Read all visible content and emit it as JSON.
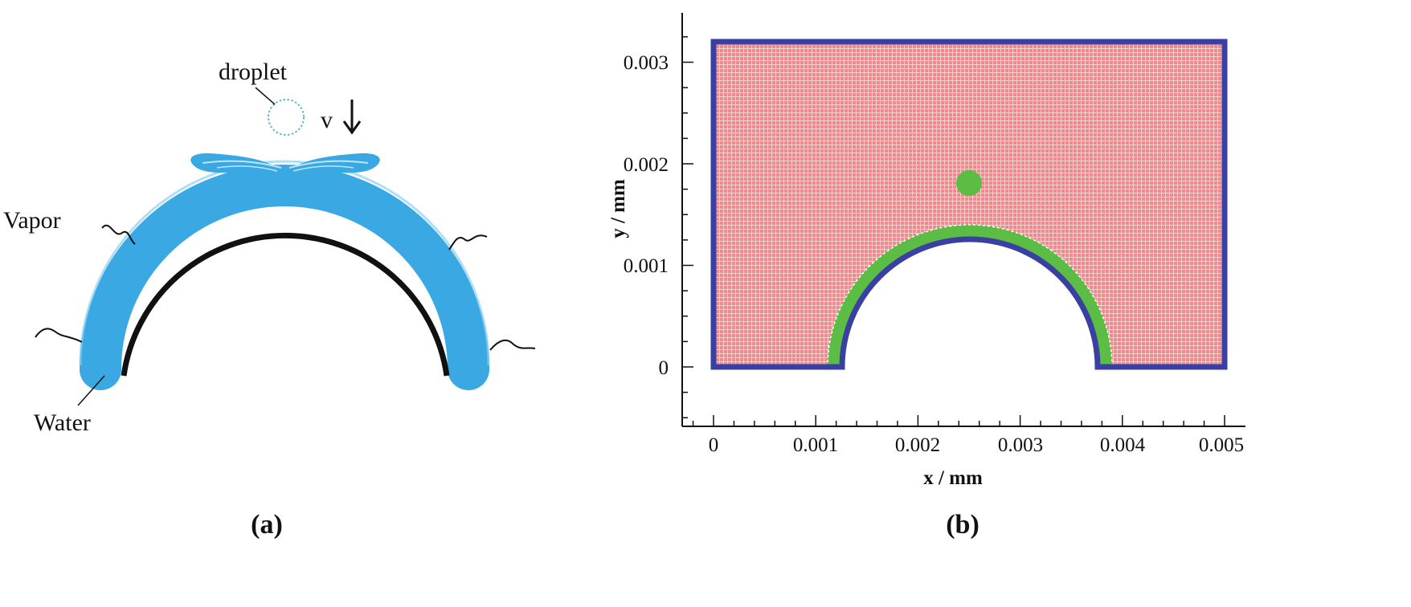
{
  "panel_a": {
    "caption": "(a)",
    "labels": {
      "droplet": "droplet",
      "velocity": "v",
      "vapor": "Vapor",
      "water": "Water"
    },
    "colors": {
      "water": "#3aa8e2",
      "water_light": "#8dd0f2",
      "surface": "#111111",
      "droplet_outline": "#5fb9c4"
    }
  },
  "panel_b": {
    "caption": "(b)",
    "x_axis": {
      "label": "x / mm",
      "ticks": [
        "0",
        "0.001",
        "0.002",
        "0.003",
        "0.004",
        "0.005"
      ]
    },
    "y_axis": {
      "label": "y / mm",
      "ticks": [
        "0",
        "0.001",
        "0.002",
        "0.003"
      ]
    },
    "colors": {
      "domain_fill": "#ec8a8c",
      "mesh_lines": "#f6cfd0",
      "boundary": "#3a3fa3",
      "water_film": "#5cbd44",
      "droplet": "#5cbd44"
    }
  }
}
